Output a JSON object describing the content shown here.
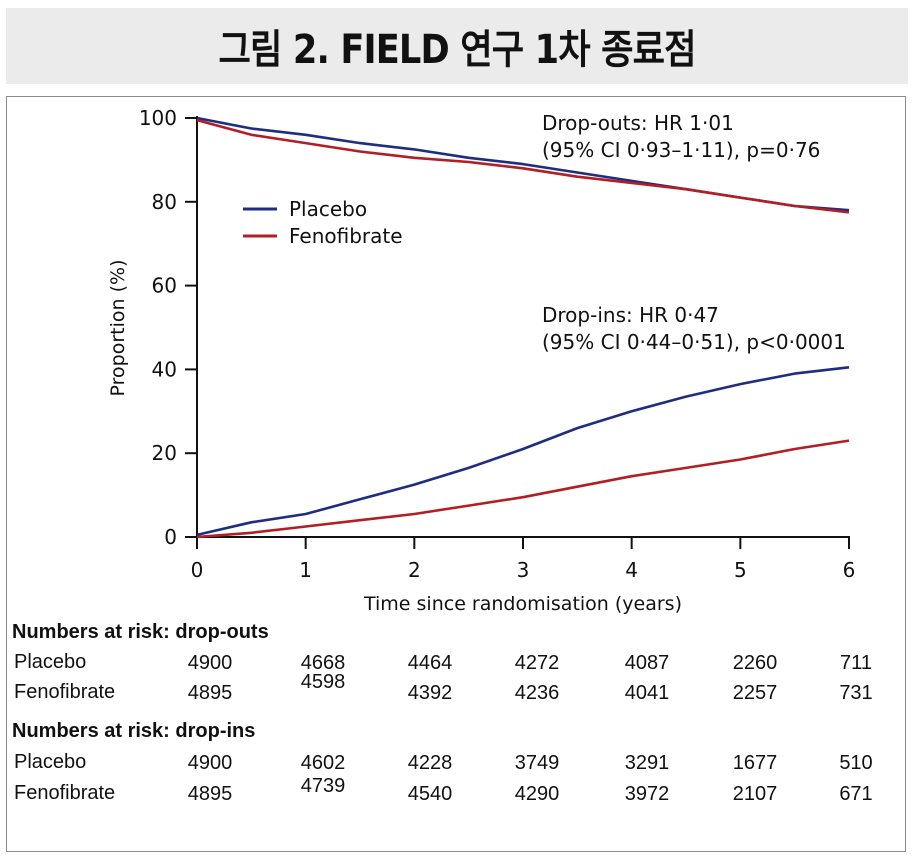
{
  "header": {
    "title": "그림 2. FIELD 연구 1차 종료점"
  },
  "chart_data": {
    "type": "line",
    "xlabel": "Time since randomisation (years)",
    "ylabel": "Proportion (%)",
    "xlim": [
      0,
      6
    ],
    "ylim": [
      0,
      100
    ],
    "x_ticks": [
      "0",
      "1",
      "2",
      "3",
      "4",
      "5",
      "6"
    ],
    "y_ticks": [
      "0",
      "20",
      "40",
      "60",
      "80",
      "100"
    ],
    "grid": false,
    "legend": {
      "placement": "upper-left",
      "entries": [
        "Placebo",
        "Fenofibrate"
      ]
    },
    "colors": {
      "Placebo": "#1f2d80",
      "Fenofibrate": "#b31e24"
    },
    "annotations": {
      "dropouts_line1": "Drop-outs: HR 1·01",
      "dropouts_line2": "(95% CI 0·93–1·11), p=0·76",
      "dropins_line1": "Drop-ins: HR 0·47",
      "dropins_line2": "(95% CI 0·44–0·51), p<0·0001"
    },
    "series": [
      {
        "name": "Placebo",
        "group": "drop-outs",
        "x": [
          0,
          0.5,
          1,
          1.5,
          2,
          2.5,
          3,
          3.5,
          4,
          4.5,
          5,
          5.5,
          6
        ],
        "y": [
          100,
          97.5,
          96,
          94,
          92.5,
          90.5,
          89,
          87,
          85,
          83,
          81,
          79,
          78
        ]
      },
      {
        "name": "Fenofibrate",
        "group": "drop-outs",
        "x": [
          0,
          0.5,
          1,
          1.5,
          2,
          2.5,
          3,
          3.5,
          4,
          4.5,
          5,
          5.5,
          6
        ],
        "y": [
          99.5,
          96,
          94,
          92,
          90.5,
          89.5,
          88,
          86,
          84.5,
          83,
          81,
          79,
          77.5
        ]
      },
      {
        "name": "Placebo",
        "group": "drop-ins",
        "x": [
          0,
          0.5,
          1,
          1.5,
          2,
          2.5,
          3,
          3.5,
          4,
          4.5,
          5,
          5.5,
          6
        ],
        "y": [
          0.5,
          3.5,
          5.5,
          9,
          12.5,
          16.5,
          21,
          26,
          30,
          33.5,
          36.5,
          39,
          40.5
        ]
      },
      {
        "name": "Fenofibrate",
        "group": "drop-ins",
        "x": [
          0,
          0.5,
          1,
          1.5,
          2,
          2.5,
          3,
          3.5,
          4,
          4.5,
          5,
          5.5,
          6
        ],
        "y": [
          0,
          1,
          2.5,
          4,
          5.5,
          7.5,
          9.5,
          12,
          14.5,
          16.5,
          18.5,
          21,
          23
        ]
      }
    ]
  },
  "risk_table": {
    "dropouts_title": "Numbers at risk: drop-outs",
    "dropouts": [
      {
        "label": "Placebo",
        "values": [
          "4900",
          "4668",
          "4464",
          "4272",
          "4087",
          "2260",
          "711"
        ]
      },
      {
        "label": "Fenofibrate",
        "values": [
          "4895",
          "4598",
          "4392",
          "4236",
          "4041",
          "2257",
          "731"
        ]
      }
    ],
    "dropins_title": "Numbers at risk: drop-ins",
    "dropins": [
      {
        "label": "Placebo",
        "values": [
          "4900",
          "4602",
          "4228",
          "3749",
          "3291",
          "1677",
          "510"
        ]
      },
      {
        "label": "Fenofibrate",
        "values": [
          "4895",
          "4739",
          "4540",
          "4290",
          "3972",
          "2107",
          "671"
        ]
      }
    ]
  }
}
